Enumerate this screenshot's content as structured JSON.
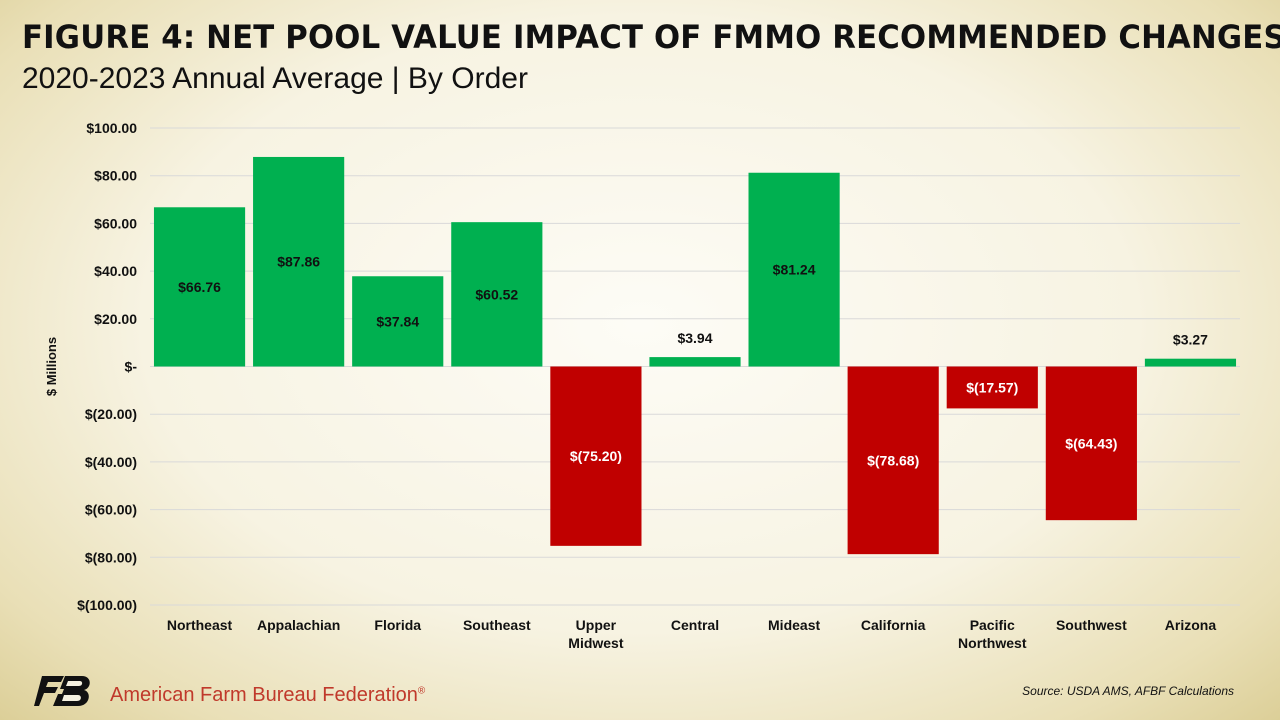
{
  "header": {
    "title": "FIGURE 4: NET POOL VALUE IMPACT OF FMMO RECOMMENDED CHANGES",
    "subtitle": "2020-2023 Annual Average | By Order"
  },
  "footer": {
    "organization": "American Farm Bureau Federation",
    "registered_mark": "®",
    "source": "Source: USDA AMS, AFBF Calculations",
    "logo_icon": "afbf-logo-icon"
  },
  "colors": {
    "positive": "#00b050",
    "negative": "#c00000",
    "grid": "#d9d9d9",
    "org_text": "#c0392b"
  },
  "chart_data": {
    "type": "bar",
    "title": "FIGURE 4: NET POOL VALUE IMPACT OF FMMO RECOMMENDED CHANGES",
    "subtitle": "2020-2023 Annual Average | By Order",
    "ylabel": "$ Millions",
    "xlabel": "",
    "ylim": [
      -100,
      100
    ],
    "grid": true,
    "legend": "none",
    "categories": [
      [
        "Northeast"
      ],
      [
        "Appalachian"
      ],
      [
        "Florida"
      ],
      [
        "Southeast"
      ],
      [
        "Upper",
        "Midwest"
      ],
      [
        "Central"
      ],
      [
        "Mideast"
      ],
      [
        "California"
      ],
      [
        "Pacific",
        "Northwest"
      ],
      [
        "Southwest"
      ],
      [
        "Arizona"
      ]
    ],
    "values": [
      66.76,
      87.86,
      37.84,
      60.52,
      -75.2,
      3.94,
      81.24,
      -78.68,
      -17.57,
      -64.43,
      3.27
    ],
    "data_labels": [
      "$66.76",
      "$87.86",
      "$37.84",
      "$60.52",
      "$(75.20)",
      "$3.94",
      "$81.24",
      "$(78.68)",
      "$(17.57)",
      "$(64.43)",
      "$3.27"
    ],
    "y_ticks": [
      100,
      80,
      60,
      40,
      20,
      0,
      -20,
      -40,
      -60,
      -80,
      -100
    ],
    "y_tick_labels": [
      "$100.00",
      "$80.00",
      "$60.00",
      "$40.00",
      "$20.00",
      "$-",
      "$(20.00)",
      "$(40.00)",
      "$(60.00)",
      "$(80.00)",
      "$(100.00)"
    ]
  }
}
